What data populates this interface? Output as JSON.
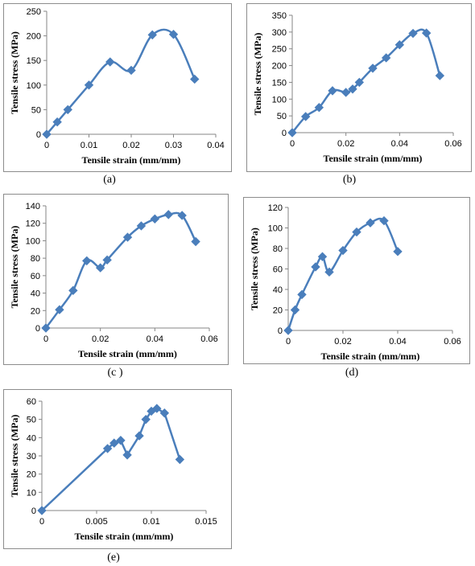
{
  "chart_data": [
    {
      "type": "line",
      "caption": "(a)",
      "xlabel": "Tensile strain (mm/mm)",
      "ylabel": "Tensile stress (MPa)",
      "xlim": [
        0,
        0.04
      ],
      "ylim": [
        0,
        250
      ],
      "xticks": [
        0,
        0.01,
        0.02,
        0.03,
        0.04
      ],
      "xtick_labels": [
        "0",
        "0.01",
        "0.02",
        "0.03",
        "0.04"
      ],
      "yticks": [
        0,
        50,
        100,
        150,
        200,
        250
      ],
      "ytick_labels": [
        "0",
        "50",
        "100",
        "150",
        "200",
        "250"
      ],
      "points": [
        [
          0,
          0
        ],
        [
          0.0025,
          25
        ],
        [
          0.005,
          50
        ],
        [
          0.01,
          100
        ],
        [
          0.015,
          147
        ],
        [
          0.02,
          130
        ],
        [
          0.025,
          202
        ],
        [
          0.03,
          203
        ],
        [
          0.035,
          112
        ]
      ],
      "smooth": true
    },
    {
      "type": "line",
      "caption": "(b)",
      "xlabel": "Tensile strain (mm/mm)",
      "ylabel": "Tensile stress (MPa)",
      "xlim": [
        0,
        0.06
      ],
      "ylim": [
        0,
        350
      ],
      "xticks": [
        0,
        0.02,
        0.04,
        0.06
      ],
      "xtick_labels": [
        "0",
        "0.02",
        "0.04",
        "0.06"
      ],
      "yticks": [
        0,
        50,
        100,
        150,
        200,
        250,
        300,
        350
      ],
      "ytick_labels": [
        "0",
        "50",
        "100",
        "150",
        "200",
        "250",
        "300",
        "350"
      ],
      "points": [
        [
          0,
          0
        ],
        [
          0.005,
          48
        ],
        [
          0.01,
          75
        ],
        [
          0.015,
          125
        ],
        [
          0.02,
          120
        ],
        [
          0.0225,
          130
        ],
        [
          0.025,
          150
        ],
        [
          0.03,
          192
        ],
        [
          0.035,
          223
        ],
        [
          0.04,
          262
        ],
        [
          0.045,
          296
        ],
        [
          0.05,
          297
        ],
        [
          0.055,
          170
        ]
      ],
      "smooth": true
    },
    {
      "type": "line",
      "caption": "(c )",
      "xlabel": "Tensile strain (mm/mm)",
      "ylabel": "Tensile stress (MPa)",
      "xlim": [
        0,
        0.06
      ],
      "ylim": [
        0,
        140
      ],
      "xticks": [
        0,
        0.02,
        0.04,
        0.06
      ],
      "xtick_labels": [
        "0",
        "0.02",
        "0.04",
        "0.06"
      ],
      "yticks": [
        0,
        20,
        40,
        60,
        80,
        100,
        120,
        140
      ],
      "ytick_labels": [
        "0",
        "20",
        "40",
        "60",
        "80",
        "100",
        "120",
        "140"
      ],
      "points": [
        [
          0,
          0
        ],
        [
          0.005,
          21
        ],
        [
          0.01,
          43
        ],
        [
          0.015,
          77
        ],
        [
          0.02,
          69
        ],
        [
          0.0225,
          78
        ],
        [
          0.03,
          104
        ],
        [
          0.035,
          117
        ],
        [
          0.04,
          125
        ],
        [
          0.045,
          130
        ],
        [
          0.05,
          129
        ],
        [
          0.055,
          99
        ]
      ],
      "smooth": true
    },
    {
      "type": "line",
      "caption": "(d)",
      "xlabel": "Tensile strain (mm/mm)",
      "ylabel": "Tensile stress (MPa)",
      "xlim": [
        0,
        0.06
      ],
      "ylim": [
        0,
        120
      ],
      "xticks": [
        0,
        0.02,
        0.04,
        0.06
      ],
      "xtick_labels": [
        "0",
        "0.02",
        "0.04",
        "0.06"
      ],
      "yticks": [
        0,
        20,
        40,
        60,
        80,
        100,
        120
      ],
      "ytick_labels": [
        "0",
        "20",
        "40",
        "60",
        "80",
        "100",
        "120"
      ],
      "points": [
        [
          0,
          0
        ],
        [
          0.0025,
          20
        ],
        [
          0.005,
          35
        ],
        [
          0.01,
          62
        ],
        [
          0.0125,
          72
        ],
        [
          0.015,
          57
        ],
        [
          0.02,
          78
        ],
        [
          0.025,
          96
        ],
        [
          0.03,
          105
        ],
        [
          0.035,
          107
        ],
        [
          0.04,
          77
        ]
      ],
      "smooth": true
    },
    {
      "type": "line",
      "caption": "(e)",
      "xlabel": "Tensile strain (mm/mm)",
      "ylabel": "Tensile stress (MPa)",
      "xlim": [
        0,
        0.015
      ],
      "ylim": [
        0,
        60
      ],
      "xticks": [
        0,
        0.005,
        0.01,
        0.015
      ],
      "xtick_labels": [
        "0",
        "0.005",
        "0.01",
        "0.015"
      ],
      "yticks": [
        0,
        10,
        20,
        30,
        40,
        50,
        60
      ],
      "ytick_labels": [
        "0",
        "10",
        "20",
        "30",
        "40",
        "50",
        "60"
      ],
      "points": [
        [
          0,
          0
        ],
        [
          0.006,
          34
        ],
        [
          0.0066,
          37
        ],
        [
          0.0072,
          38.5
        ],
        [
          0.0078,
          30.5
        ],
        [
          0.0089,
          41
        ],
        [
          0.0095,
          50
        ],
        [
          0.01,
          54.5
        ],
        [
          0.0105,
          56
        ],
        [
          0.0112,
          53.5
        ],
        [
          0.0126,
          28
        ]
      ],
      "smooth": false
    }
  ],
  "colors": {
    "series": "#4a7ebb",
    "axis": "#868686",
    "frame": "#8c8c8c"
  }
}
